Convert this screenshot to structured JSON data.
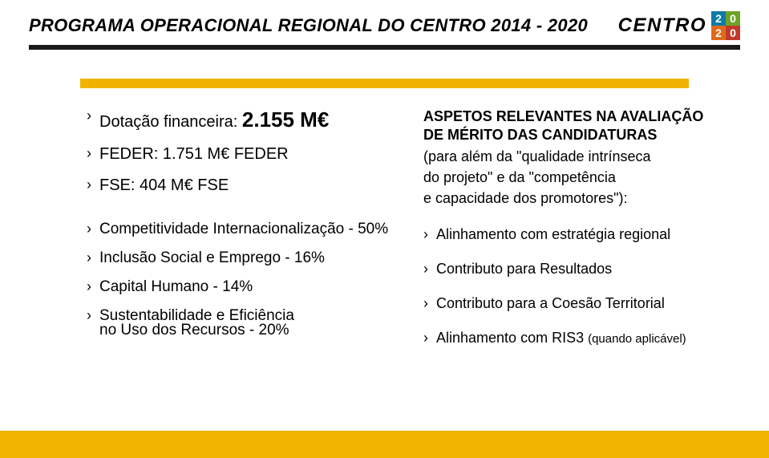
{
  "colors": {
    "accent_yellow": "#f0b400",
    "logo_blue": "#0f7aa6",
    "logo_green": "#6fa229",
    "logo_orange": "#e06a1c",
    "logo_red": "#c0392b",
    "footer_band": "#f0b400",
    "black": "#000000"
  },
  "header": {
    "title": "PROGRAMA OPERACIONAL REGIONAL DO CENTRO 2014 - 2020",
    "logo_word": "CENTRO",
    "logo_cells": [
      "2",
      "0",
      "2",
      "0"
    ]
  },
  "left": {
    "line1_prefix": "Dotação financeira: ",
    "line1_value": "2.155 M€",
    "line2": "FEDER: 1.751 M€ FEDER",
    "line3": "FSE:  404 M€ FSE",
    "bullets": [
      "Competitividade Internacionalização - 50%",
      "Inclusão Social e Emprego - 16%",
      "Capital Humano - 14%"
    ],
    "bullet4_l1": "Sustentabilidade e Eficiência",
    "bullet4_l2": "no Uso dos Recursos - 20%"
  },
  "right": {
    "heading_l1": "ASPETOS RELEVANTES NA AVALIAÇÃO",
    "heading_l2": "DE MÉRITO DAS CANDIDATURAS",
    "paren_l1": "(para além da \"qualidade intrínseca",
    "paren_l2": "do projeto\" e da \"competência",
    "paren_l3": "e capacidade dos promotores\"):",
    "bullets": [
      "Alinhamento com estratégia regional",
      "Contributo para Resultados",
      "Contributo para a Coesão Territorial"
    ],
    "bullet4_main": "Alinhamento com RIS3 ",
    "bullet4_note": "(quando aplicável)"
  }
}
